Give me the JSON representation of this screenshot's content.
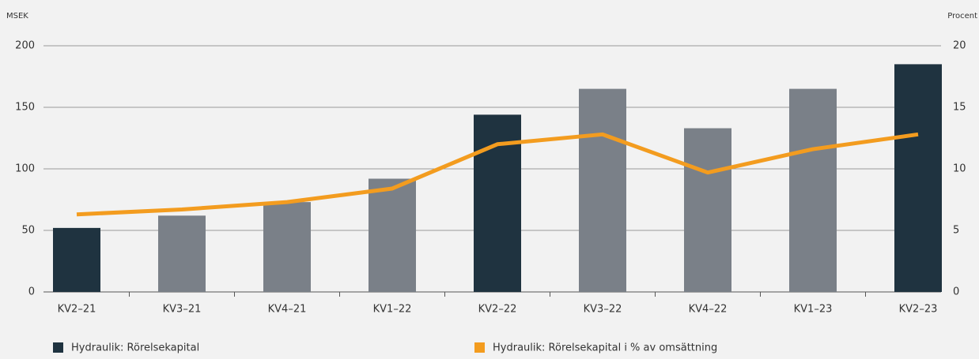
{
  "chart_data": {
    "type": "bar-line",
    "ylabel": "MSEK",
    "y2label": "Procent",
    "categories": [
      "KV2–21",
      "KV3–21",
      "KV4–21",
      "KV1–22",
      "KV2–22",
      "KV3–22",
      "KV4–22",
      "KV1–23",
      "KV2–23"
    ],
    "series": [
      {
        "name": "Hydraulik: Rörelsekapital",
        "type": "bar",
        "color": "#1f3340",
        "colors": [
          "#1f3340",
          "#7a8088",
          "#7a8088",
          "#7a8088",
          "#1f3340",
          "#7a8088",
          "#7a8088",
          "#7a8088",
          "#1f3340"
        ],
        "values": [
          52,
          62,
          73,
          92,
          144,
          165,
          133,
          165,
          185
        ]
      },
      {
        "name": "Hydraulik: Rörelsekapital i % av omsättning",
        "type": "line",
        "axis": "y2",
        "color": "#f39c1f",
        "values": [
          6.3,
          6.7,
          7.3,
          8.4,
          12.0,
          12.8,
          9.7,
          11.6,
          12.8
        ]
      }
    ],
    "ylim": [
      0,
      200
    ],
    "yticks": [
      0,
      50,
      100,
      150,
      200
    ],
    "y2lim": [
      0,
      20
    ],
    "y2ticks": [
      0,
      5,
      10,
      15,
      20
    ],
    "grid": true
  }
}
